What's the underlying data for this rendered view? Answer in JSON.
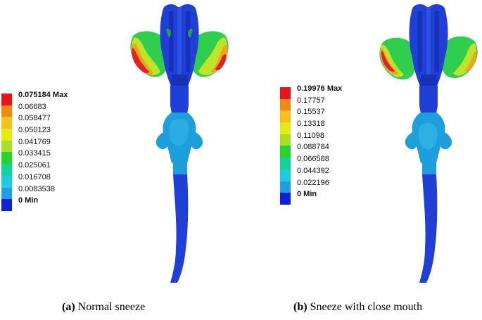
{
  "panels": [
    {
      "tag": "(a)",
      "caption": "Normal sneeze",
      "legend": {
        "max_label": "0.075184 Max",
        "min_label": "0 Min",
        "ticks": [
          "0.066830",
          "0.058477",
          "0.050123",
          "0.041769",
          "0.033415",
          "0.025061",
          "0.016708",
          "0.0083538"
        ],
        "ticks_display": [
          "0.06683",
          "0.058477",
          "0.050123",
          "0.041769",
          "0.033415",
          "0.025061",
          "0.016708",
          "0.0083538"
        ]
      }
    },
    {
      "tag": "(b)",
      "caption": "Sneeze  with close  mouth",
      "legend": {
        "max_label": "0.19976 Max",
        "min_label": "0 Min",
        "ticks": [
          "0.17757",
          "0.15537",
          "0.13318",
          "0.11098",
          "0.088784",
          "0.066588",
          "0.044392",
          "0.022196"
        ],
        "ticks_display": [
          "0.17757",
          "0.15537",
          "0.13318",
          "0.11098",
          "0.088784",
          "0.066588",
          "0.044392",
          "0.022196"
        ]
      }
    }
  ],
  "colormap": [
    "#e8141a",
    "#f08a10",
    "#f5c21a",
    "#e6ec10",
    "#a6e024",
    "#26d42a",
    "#12d39a",
    "#1ecbe2",
    "#1f9ee0",
    "#0b24d8"
  ],
  "region_colors": {
    "airway": "#1f3fd6",
    "airway_dark": "#1730b8",
    "trachea_region": "#1c9fdb",
    "trachea_light": "#36b8e8",
    "cheek_outer": "#e2202a",
    "cheek_mid": "#f1a31d",
    "cheek_inner": "#bfe327",
    "cheek_green": "#2fce4e"
  }
}
